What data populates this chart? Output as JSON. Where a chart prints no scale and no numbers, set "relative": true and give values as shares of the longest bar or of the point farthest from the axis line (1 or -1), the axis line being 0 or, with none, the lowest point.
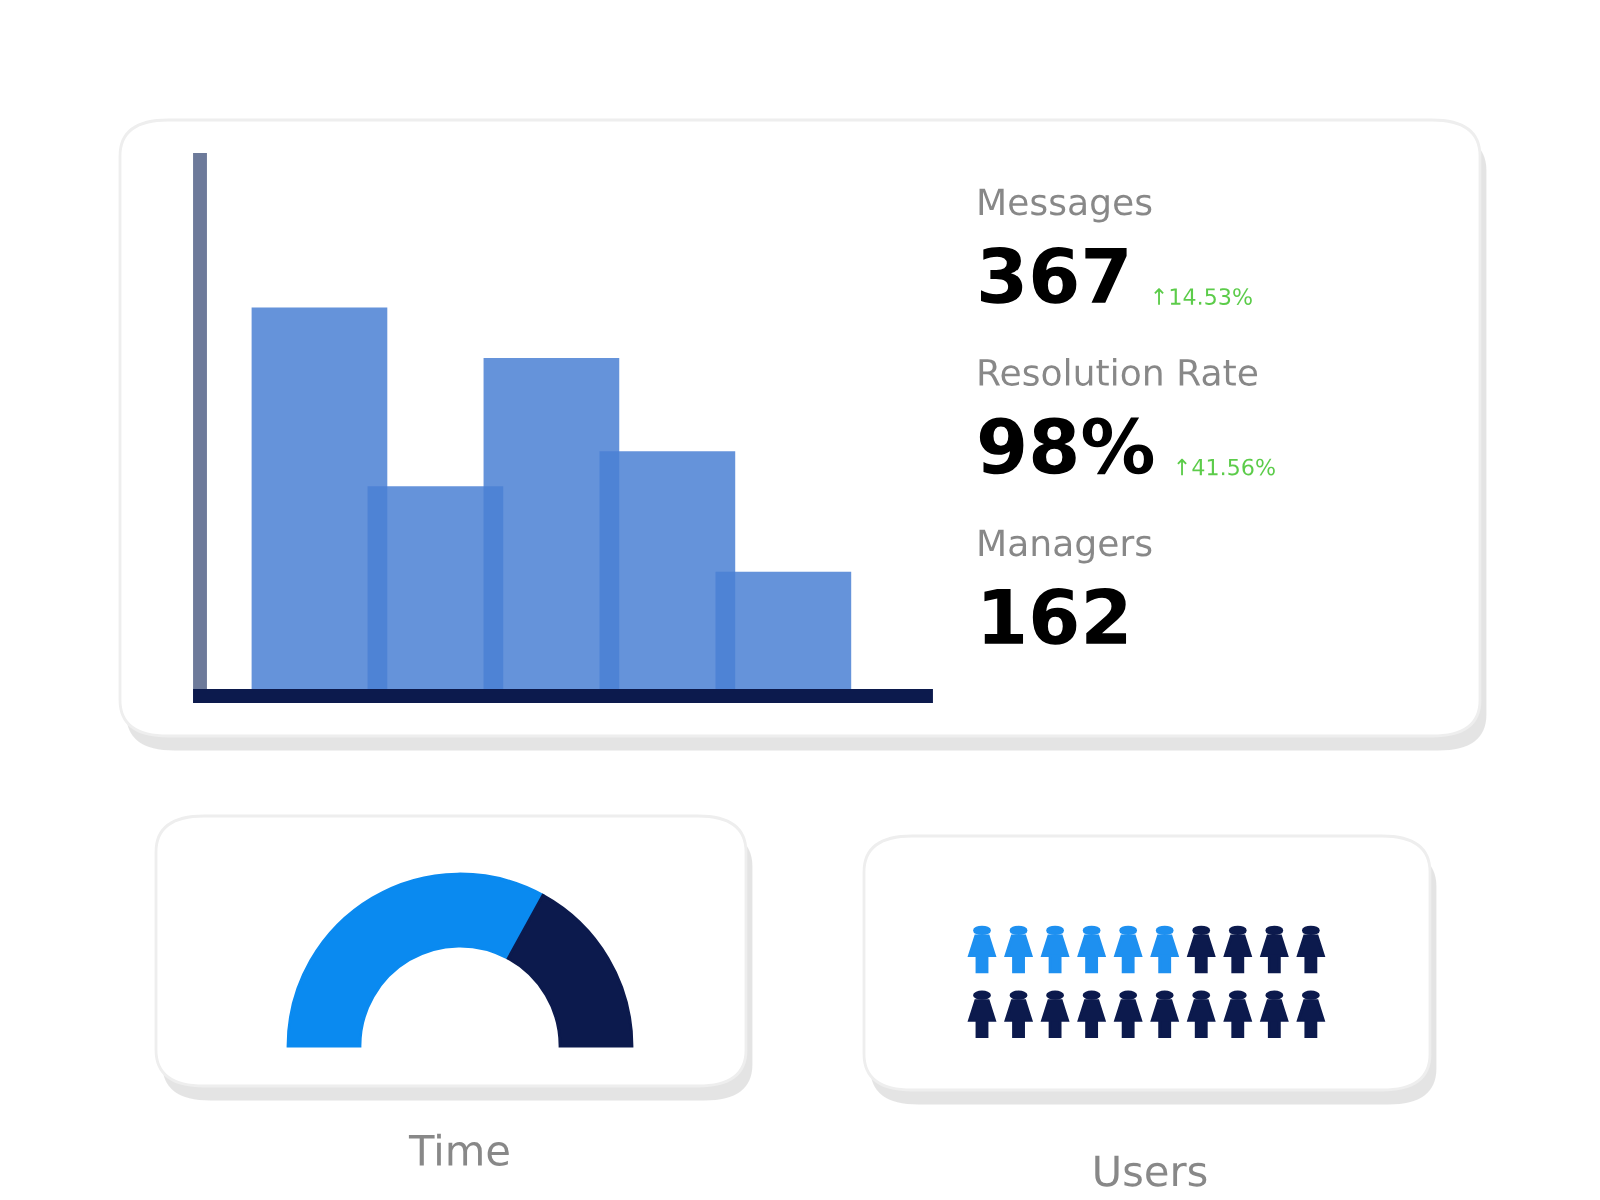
{
  "chart_data": [
    {
      "type": "bar",
      "relative": true,
      "categories": [
        null,
        null,
        null,
        null,
        null
      ],
      "values": [
        1,
        0.54,
        0.87,
        0.63,
        0.32
      ],
      "color": "#4a80d4",
      "grid": false
    },
    {
      "type": "other",
      "annotations": [
        "Messages",
        "367",
        "↑14.53%",
        "Resolution Rate",
        "98%",
        "↑41.56%",
        "Managers",
        "162"
      ]
    },
    {
      "type": "donut",
      "categories": [
        null,
        null
      ],
      "values": [
        66,
        34
      ],
      "colors": [
        "#0a8af0",
        "#0c1a4d"
      ],
      "xlabel": "Time"
    },
    {
      "type": "other",
      "xlabel": "Users"
    }
  ]
}
